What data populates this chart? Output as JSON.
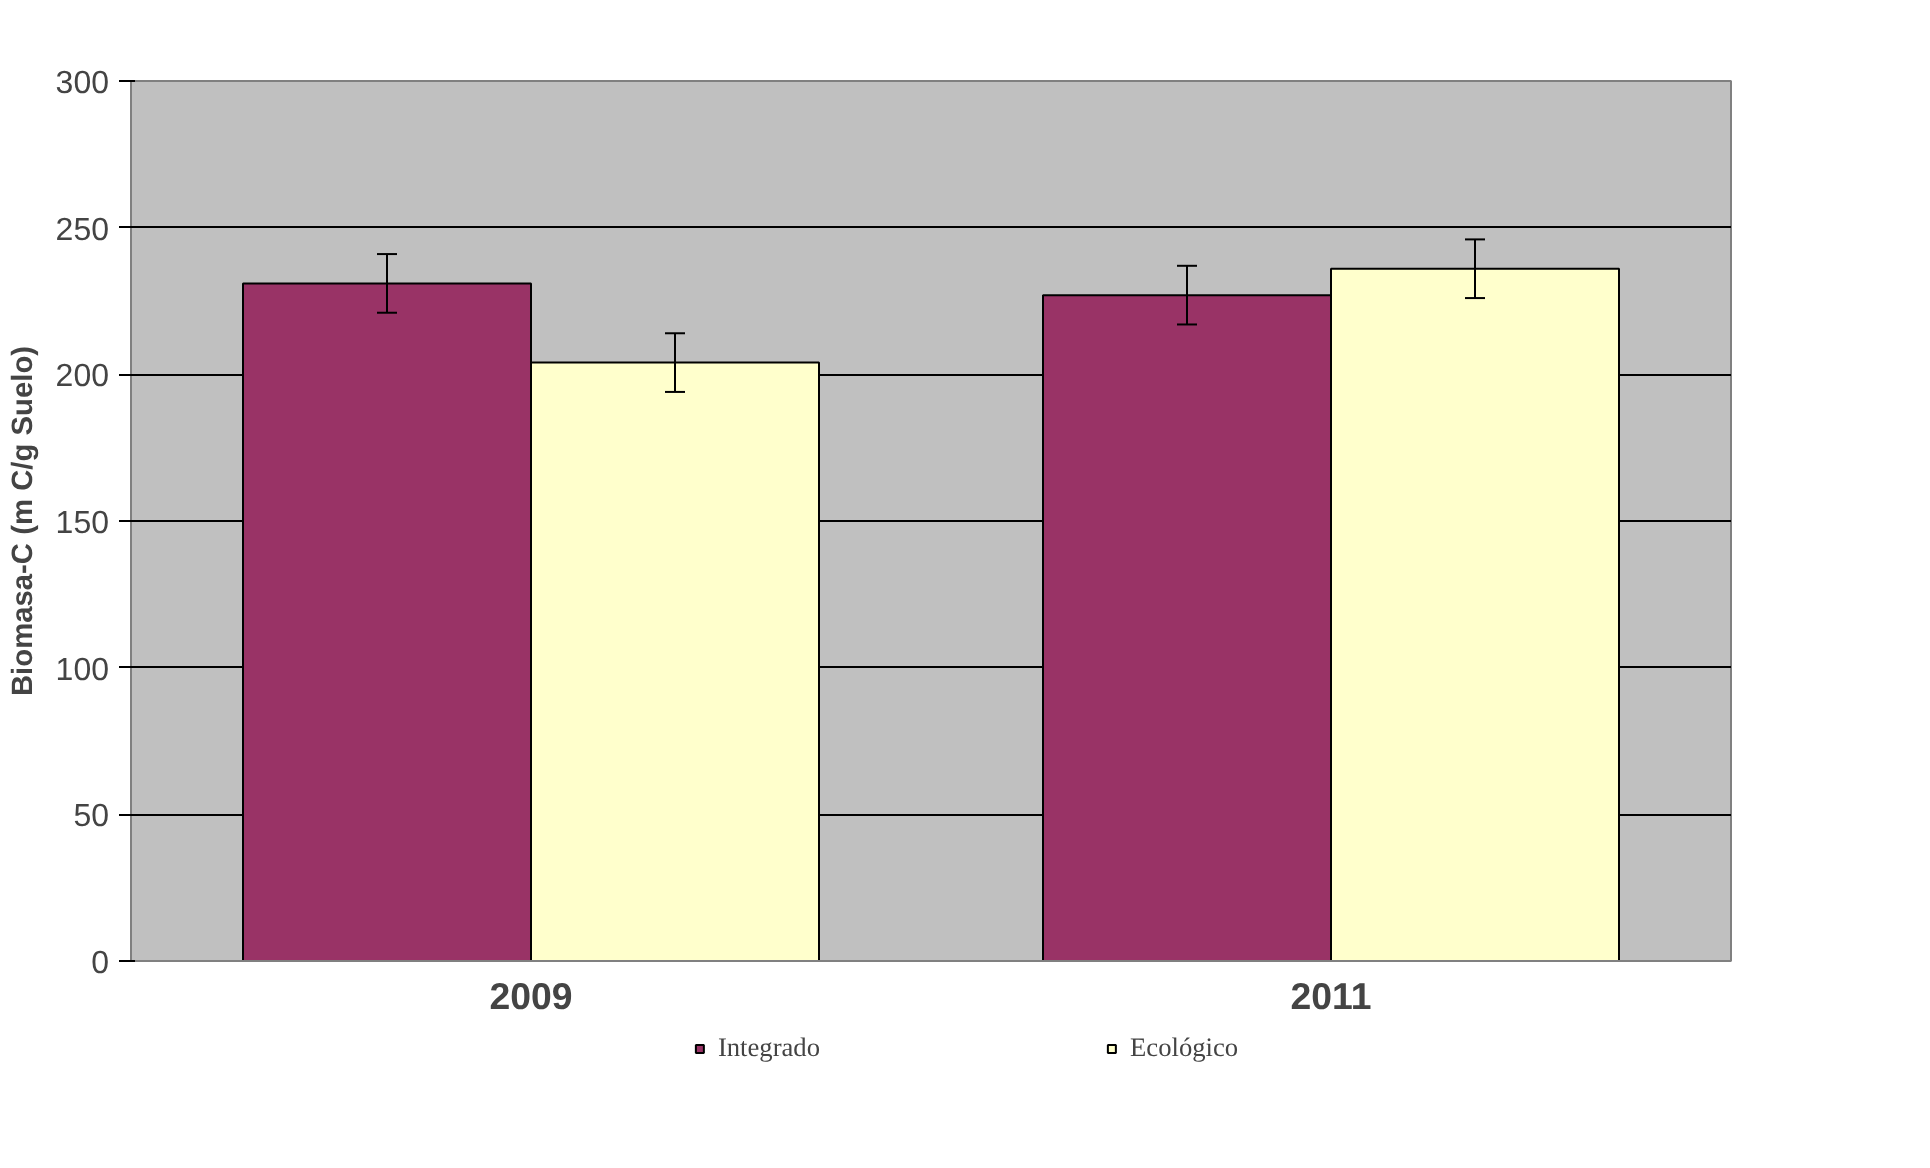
{
  "chart_data": {
    "type": "bar",
    "ylabel": "Biomasa-C (m C/g Suelo)",
    "categories": [
      "2009",
      "2011"
    ],
    "series": [
      {
        "name": "Integrado",
        "color": "#993366",
        "values": [
          231,
          227
        ],
        "errors": [
          10,
          10
        ]
      },
      {
        "name": "Ecológico",
        "color": "#ffffcc",
        "values": [
          204,
          236
        ],
        "errors": [
          10,
          10
        ]
      }
    ],
    "ylim": [
      0,
      300
    ],
    "yticks": [
      0,
      50,
      100,
      150,
      200,
      250,
      300
    ],
    "grid": "y",
    "legend": "bottom"
  }
}
